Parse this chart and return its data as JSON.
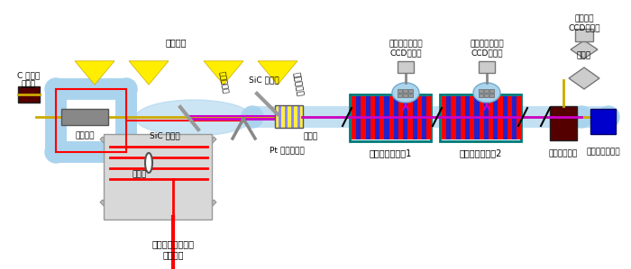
{
  "bg_color": "#ffffff",
  "light_blue": "#aad4ee",
  "red": "#ff0000",
  "purple": "#cc00cc",
  "yellow": "#ffee00",
  "dark_yellow": "#ccaa00",
  "teal": "#007777",
  "dark_red": "#550000",
  "blue": "#0000cc",
  "labels": {
    "laser": "チタンサファイヤ\nレーザー",
    "lens": "レンズ",
    "pt_mirror": "Pt 凹面ミラー",
    "sic_mirror1": "SiC ミラー",
    "spectro1": "分光器",
    "gas_cell": "ガスセル",
    "high_harmonic": "高次高調波",
    "sic_mirror2": "SiC ミラー",
    "electron_beam": "電子ビーム",
    "chicane": "シケイン",
    "c_band": "C バンド\n加速器",
    "undulator1": "アンジュレータ1",
    "undulator2": "アンジュレータ2",
    "beam_dump": "ビームダンプ",
    "gas_monitor": "ガス強度モニタ",
    "spectro2": "分光器",
    "bmon1": "ビームモニタ用\nCCDカメラ",
    "bmon2": "ビームモニタ用\nCCDカメラ",
    "spectro_ccd": "分光器用\nCCDカメラ"
  }
}
